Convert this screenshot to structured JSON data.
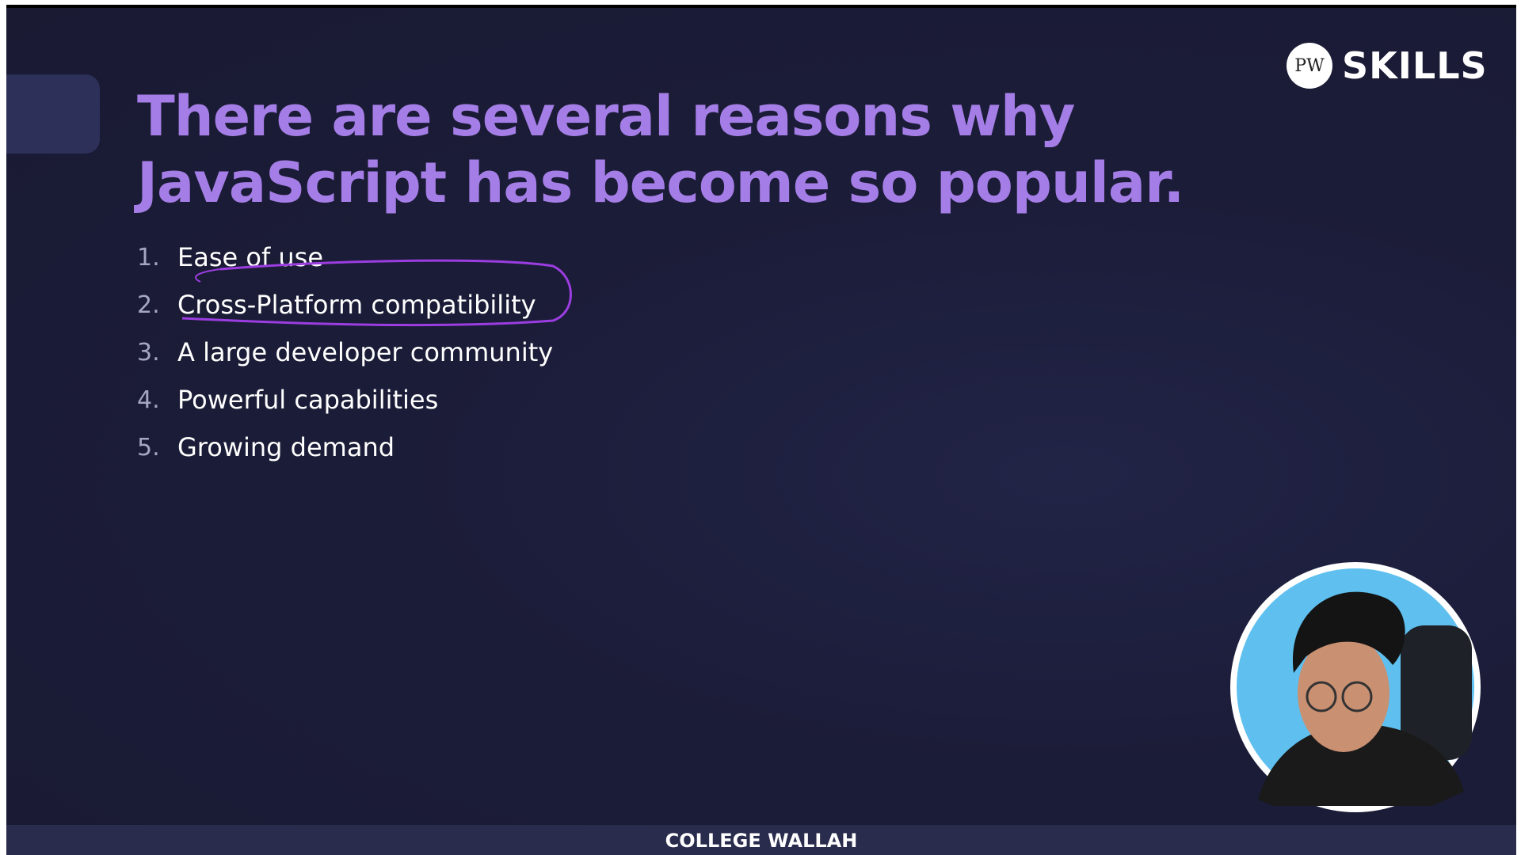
{
  "slide": {
    "title_lines": [
      "There are several reasons why",
      "JavaScript has become so popular."
    ],
    "items": [
      {
        "number": "1.",
        "text": "Ease of use"
      },
      {
        "number": "2.",
        "text": "Cross-Platform compatibility"
      },
      {
        "number": "3.",
        "text": "A large developer community"
      },
      {
        "number": "4.",
        "text": "Powerful capabilities"
      },
      {
        "number": "5.",
        "text": "Growing demand"
      }
    ]
  },
  "logo": {
    "mark": "PW",
    "text": "SKILLS"
  },
  "footer": {
    "text": "COLLEGE WALLAH"
  }
}
